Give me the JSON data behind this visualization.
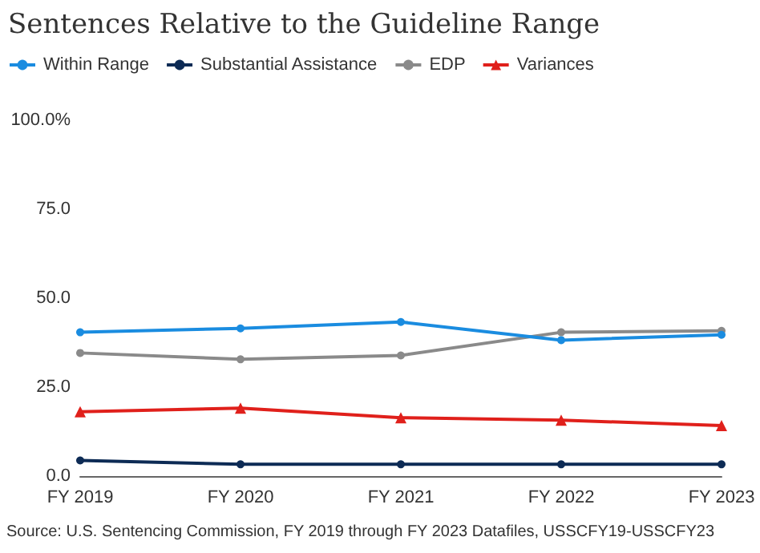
{
  "chart_data": {
    "type": "line",
    "title": "Sentences Relative to the Guideline Range",
    "categories": [
      "FY 2019",
      "FY 2020",
      "FY 2021",
      "FY 2022",
      "FY 2023"
    ],
    "series": [
      {
        "name": "Within Range",
        "color": "#1a8ce0",
        "marker": "circle",
        "values": [
          40.4,
          41.5,
          43.3,
          38.2,
          39.7
        ]
      },
      {
        "name": "Substantial Assistance",
        "color": "#0d2b55",
        "marker": "circle",
        "values": [
          4.4,
          3.3,
          3.3,
          3.3,
          3.3
        ]
      },
      {
        "name": "EDP",
        "color": "#8a8a8a",
        "marker": "circle",
        "values": [
          34.6,
          32.8,
          33.9,
          40.4,
          40.8
        ]
      },
      {
        "name": "Variances",
        "color": "#e0201b",
        "marker": "triangle",
        "values": [
          18.1,
          19.1,
          16.4,
          15.7,
          14.2
        ]
      }
    ],
    "ylim": [
      0,
      100
    ],
    "yticks": [
      {
        "value": 0,
        "label": "0.0"
      },
      {
        "value": 25,
        "label": "25.0"
      },
      {
        "value": 50,
        "label": "50.0"
      },
      {
        "value": 75,
        "label": "75.0"
      },
      {
        "value": 100,
        "label": "100.0%"
      }
    ],
    "grid": false,
    "legend": "top left",
    "annotations": [
      "Source: U.S. Sentencing Commission, FY 2019 through FY 2023 Datafiles, USSCFY19-USSCFY23"
    ]
  }
}
